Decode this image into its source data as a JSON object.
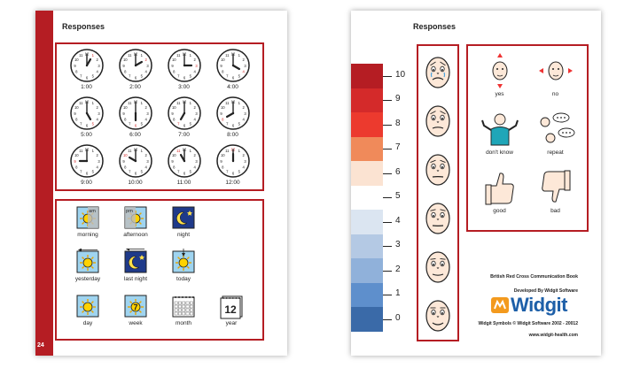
{
  "left_page": {
    "heading": "Responses",
    "page_number": "24",
    "clocks": [
      {
        "label": "1:00",
        "hour": 1
      },
      {
        "label": "2:00",
        "hour": 2
      },
      {
        "label": "3:00",
        "hour": 3
      },
      {
        "label": "4:00",
        "hour": 4
      },
      {
        "label": "5:00",
        "hour": 5
      },
      {
        "label": "6:00",
        "hour": 6
      },
      {
        "label": "7:00",
        "hour": 7
      },
      {
        "label": "8:00",
        "hour": 8
      },
      {
        "label": "9:00",
        "hour": 9
      },
      {
        "label": "10:00",
        "hour": 10
      },
      {
        "label": "11:00",
        "hour": 11
      },
      {
        "label": "12:00",
        "hour": 12
      }
    ],
    "time_symbols": [
      {
        "label": "morning",
        "icon": "morning-icon",
        "badge": "am"
      },
      {
        "label": "afternoon",
        "icon": "afternoon-icon",
        "badge": "pm"
      },
      {
        "label": "night",
        "icon": "night-icon"
      },
      {
        "label": "yesterday",
        "icon": "yesterday-icon"
      },
      {
        "label": "last night",
        "icon": "last-night-icon"
      },
      {
        "label": "today",
        "icon": "today-icon"
      },
      {
        "label": "day",
        "icon": "day-icon"
      },
      {
        "label": "week",
        "icon": "week-icon",
        "badge": "7"
      },
      {
        "label": "month",
        "icon": "month-icon"
      },
      {
        "label": "year",
        "icon": "year-icon",
        "badge": "12"
      }
    ]
  },
  "right_page": {
    "heading": "Responses",
    "pain_scale": {
      "levels": [
        "10",
        "9",
        "8",
        "7",
        "6",
        "5",
        "4",
        "3",
        "2",
        "1",
        "0"
      ],
      "colors": [
        "#b51d23",
        "#d42a2a",
        "#ec3a2e",
        "#f08a5a",
        "#fbe3d2",
        "#ffffff",
        "#dbe5f1",
        "#b4c9e4",
        "#90b1da",
        "#5e8fcc",
        "#3a6aa8"
      ]
    },
    "faces": [
      "face-crying-icon",
      "face-very-sad-icon",
      "face-sad-icon",
      "face-worried-icon",
      "face-neutral-icon",
      "face-smile-icon"
    ],
    "responses": [
      {
        "label": "yes",
        "icon": "nodding-head-icon"
      },
      {
        "label": "no",
        "icon": "shaking-head-icon"
      },
      {
        "label": "don't know",
        "icon": "shrugging-person-icon"
      },
      {
        "label": "repeat",
        "icon": "speech-bubbles-icon"
      },
      {
        "label": "good",
        "icon": "thumbs-up-icon"
      },
      {
        "label": "bad",
        "icon": "thumbs-down-icon"
      }
    ],
    "book_title": "British Red Cross Communication Book",
    "developed_by": "Developed By Widgit Software",
    "brand": "Widgit",
    "copyright": "Widgit Symbols © Widgit Software 2002 - 20012",
    "website": "www.widgit-health.com",
    "brand_color": "#1d5fa8",
    "logo_orange": "#f39a1e"
  }
}
